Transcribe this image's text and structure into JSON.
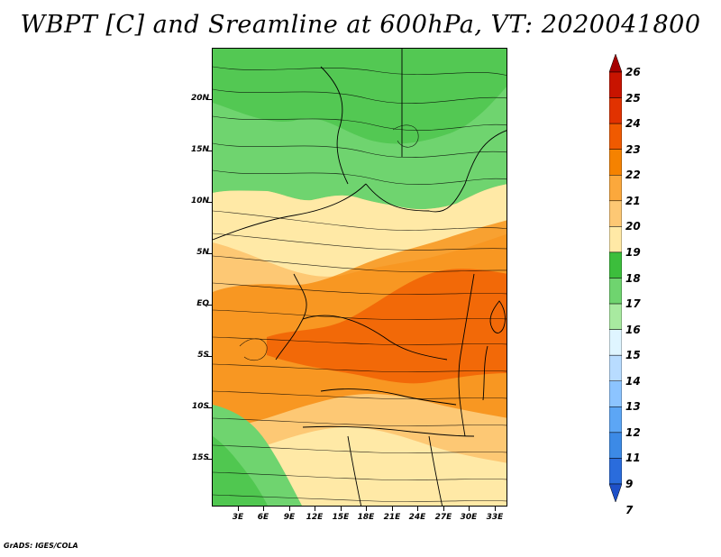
{
  "title": "WBPT [C] and Sreamline at 600hPa, VT: 2020041800",
  "footer": "GrADS: IGES/COLA",
  "map": {
    "lat_labels": [
      "20N",
      "15N",
      "10N",
      "5N",
      "EQ",
      "5S",
      "10S",
      "15S"
    ],
    "lon_labels": [
      "3E",
      "6E",
      "9E",
      "12E",
      "15E",
      "18E",
      "21E",
      "24E",
      "27E",
      "30E",
      "33E"
    ],
    "lat_range": [
      -20,
      24.5
    ],
    "lon_range": [
      0.5,
      35
    ],
    "field": "WBPT",
    "units": "C",
    "level": "600hPa",
    "valid_time": "2020041800"
  },
  "colorbar": {
    "labels": [
      "26",
      "25",
      "24",
      "23",
      "22",
      "21",
      "20",
      "19",
      "18",
      "17",
      "16",
      "15",
      "14",
      "13",
      "12",
      "11",
      "9",
      "7"
    ],
    "colors": [
      "#a50000",
      "#c81400",
      "#e13200",
      "#f05a00",
      "#f58200",
      "#fba83c",
      "#fdc874",
      "#ffe9a6",
      "#3cbe3c",
      "#6fd46f",
      "#a8eaa0",
      "#dff5ff",
      "#b8dcff",
      "#8cc4ff",
      "#5ca6f5",
      "#3c8ae6",
      "#2a6cdc",
      "#1e50c8"
    ]
  }
}
